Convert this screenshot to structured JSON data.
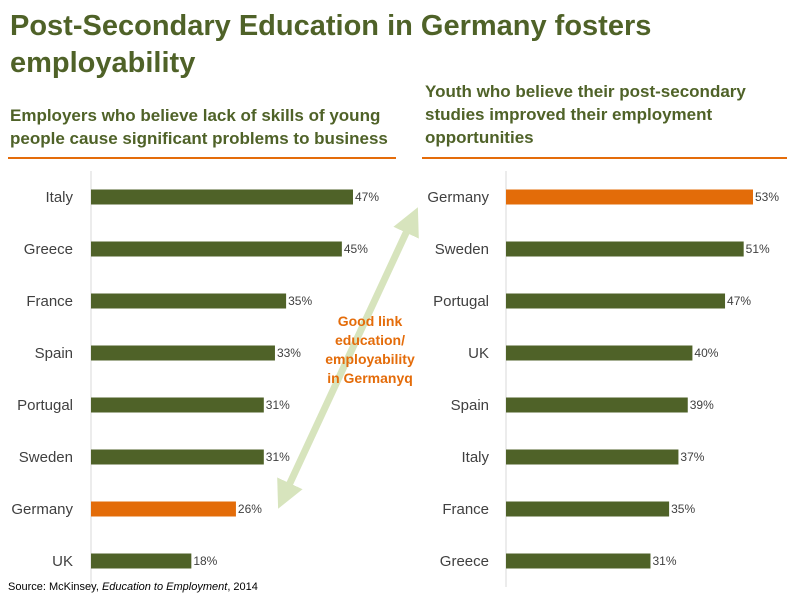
{
  "title": "Post-Secondary Education in Germany fosters employability",
  "colors": {
    "bar": "#4f6228",
    "highlight": "#e36c09",
    "text": "#404040",
    "arrow": "#d7e4bd"
  },
  "annotation": {
    "lines": [
      "Good link",
      "education/",
      "employability",
      "in Germanyq"
    ]
  },
  "source": {
    "prefix": "Source: McKinsey, ",
    "italic": "Education to Employment",
    "suffix": ", 2014"
  },
  "chart_data": [
    {
      "type": "bar",
      "orientation": "horizontal",
      "title": "Employers who believe lack of skills of young people cause significant problems to business",
      "categories": [
        "Italy",
        "Greece",
        "France",
        "Spain",
        "Portugal",
        "Sweden",
        "Germany",
        "UK"
      ],
      "values": [
        47,
        45,
        35,
        33,
        31,
        31,
        26,
        18
      ],
      "labels": [
        "47%",
        "45%",
        "35%",
        "33%",
        "31%",
        "31%",
        "26%",
        "18%"
      ],
      "highlight": "Germany",
      "unit": "%",
      "xlim": [
        0,
        47
      ]
    },
    {
      "type": "bar",
      "orientation": "horizontal",
      "title": "Youth who believe their post-secondary studies improved their employment opportunities",
      "categories": [
        "Germany",
        "Sweden",
        "Portugal",
        "UK",
        "Spain",
        "Italy",
        "France",
        "Greece"
      ],
      "values": [
        53,
        51,
        47,
        40,
        39,
        37,
        35,
        31
      ],
      "labels": [
        "53%",
        "51%",
        "47%",
        "40%",
        "39%",
        "37%",
        "35%",
        "31%"
      ],
      "highlight": "Germany",
      "unit": "%",
      "xlim": [
        0,
        53
      ]
    }
  ]
}
